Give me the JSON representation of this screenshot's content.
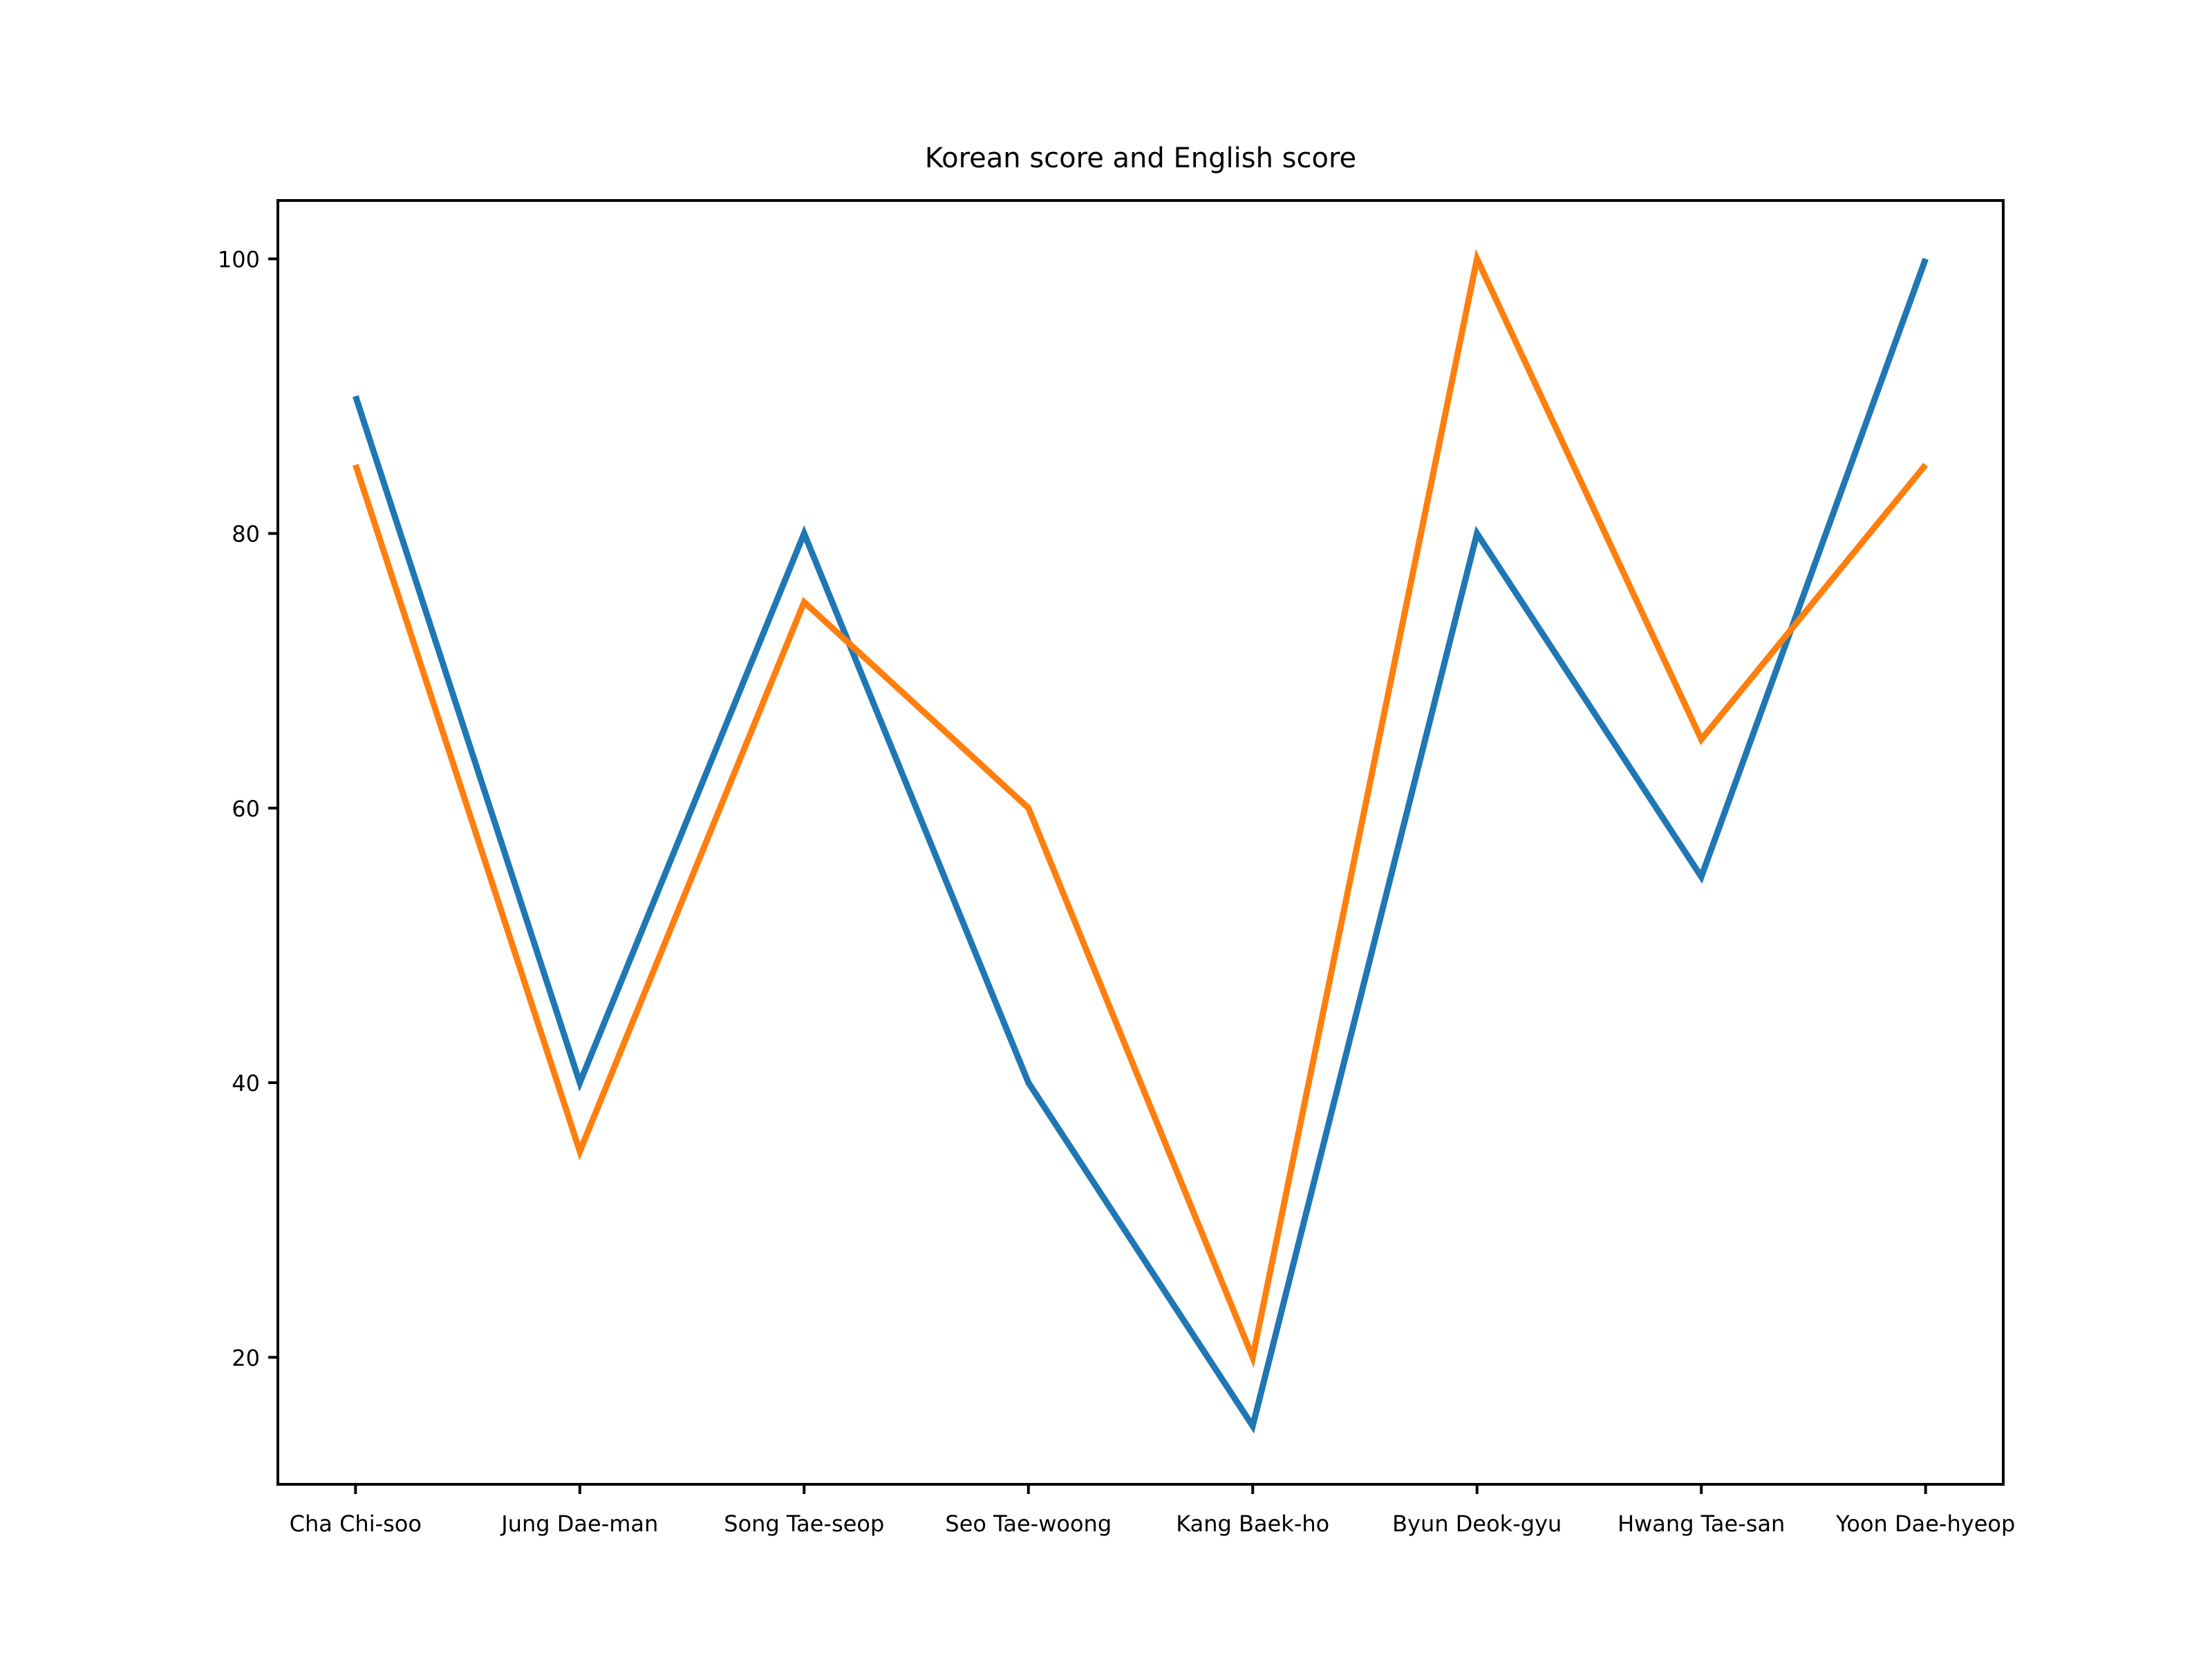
{
  "chart_data": {
    "type": "line",
    "title": "Korean score and English score",
    "xlabel": "",
    "ylabel": "",
    "categories": [
      "Cha Chi-soo",
      "Jung Dae-man",
      "Song Tae-seop",
      "Seo Tae-woong",
      "Kang Baek-ho",
      "Byun Deok-gyu",
      "Hwang Tae-san",
      "Yoon Dae-hyeop"
    ],
    "yticks": [
      20,
      40,
      60,
      80,
      100
    ],
    "ylim": [
      10.75,
      104.25
    ],
    "grid": false,
    "legend": "none",
    "series": [
      {
        "values": [
          90,
          40,
          80,
          40,
          15,
          80,
          55,
          100
        ],
        "color": "#1f77b4"
      },
      {
        "values": [
          85,
          35,
          75,
          60,
          20,
          100,
          65,
          85
        ],
        "color": "#ff7f0e"
      }
    ]
  }
}
